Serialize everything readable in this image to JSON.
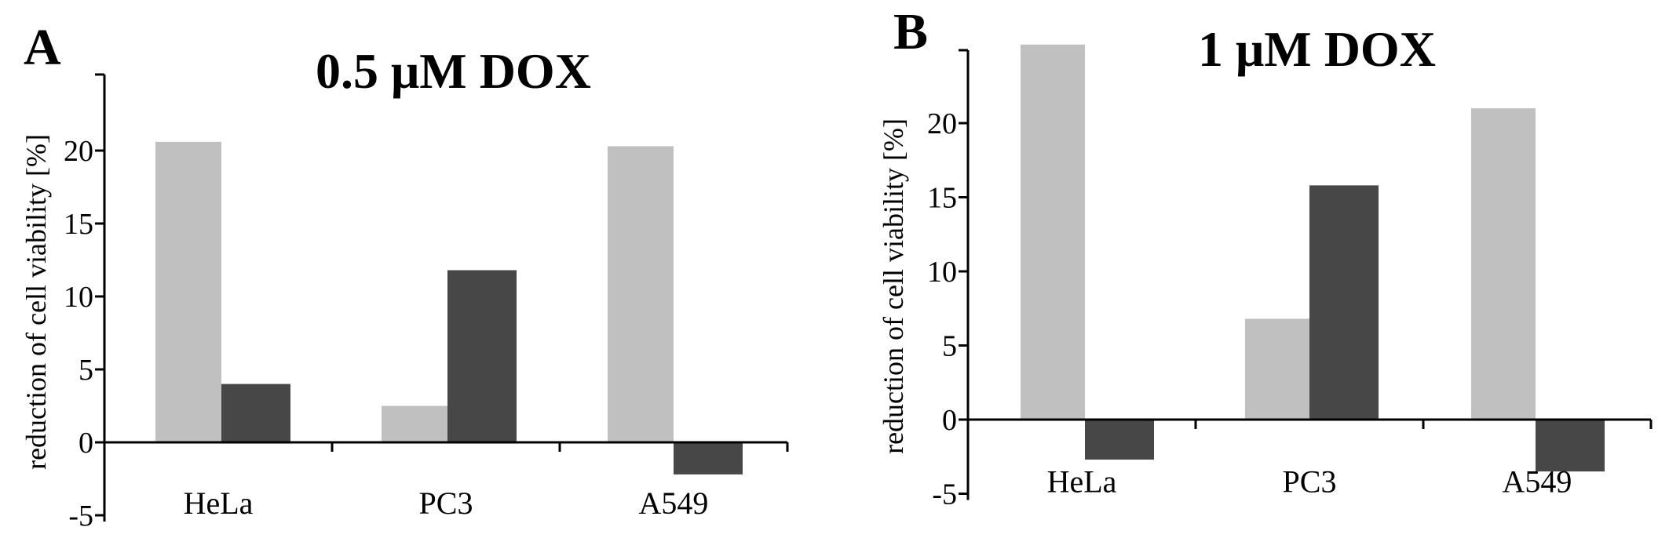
{
  "chart_data": [
    {
      "type": "bar",
      "panel_label": "A",
      "title": "0.5 μM DOX",
      "ylabel": "reduction of cell viability [%]",
      "categories": [
        "HeLa",
        "PC3",
        "A549"
      ],
      "ylim": [
        -5,
        25
      ],
      "yticks": [
        "-5",
        "0",
        "5",
        "10",
        "15",
        "20"
      ],
      "series": [
        {
          "values": [
            20.6,
            2.5,
            20.3
          ],
          "color": "#c0c0c0"
        },
        {
          "values": [
            4.0,
            11.8,
            -2.2
          ],
          "color": "#474747"
        }
      ]
    },
    {
      "type": "bar",
      "panel_label": "B",
      "title": "1 μM DOX",
      "ylabel": "reduction of cell viability [%]",
      "categories": [
        "HeLa",
        "PC3",
        "A549"
      ],
      "ylim": [
        -5,
        25
      ],
      "yticks": [
        "-5",
        "0",
        "5",
        "10",
        "15",
        "20"
      ],
      "series": [
        {
          "values": [
            25.3,
            6.8,
            21.0
          ],
          "color": "#c0c0c0"
        },
        {
          "values": [
            -2.7,
            15.8,
            -3.5
          ],
          "color": "#474747"
        }
      ]
    }
  ]
}
